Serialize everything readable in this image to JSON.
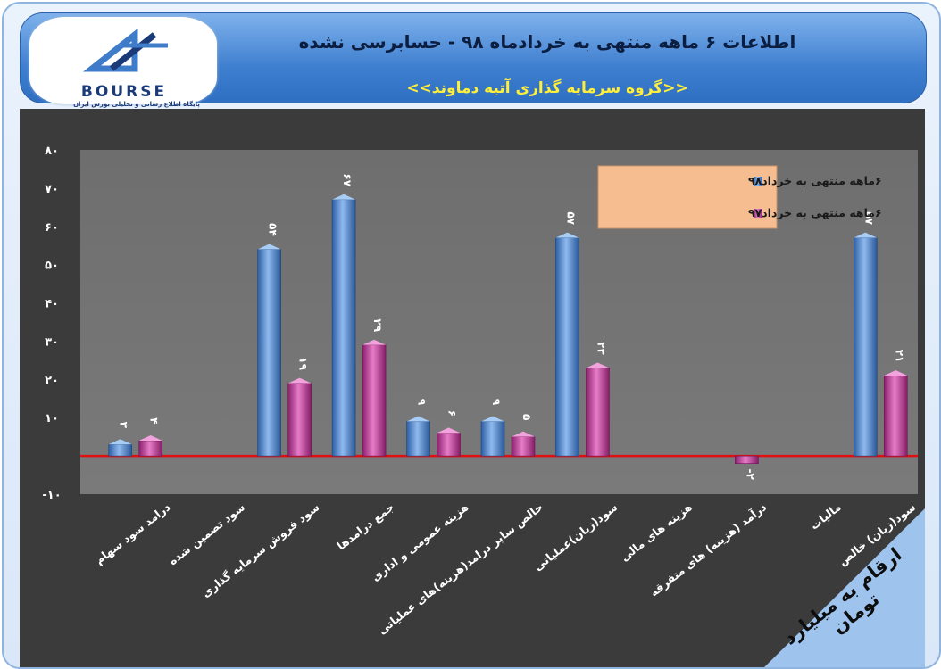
{
  "header": {
    "title": "اطلاعات ۶ ماهه منتهی به خردادماه ۹۸ - حسابرسی نشده",
    "subtitle": "<<گروه سرمایه گذاری آتیه دماوند>>"
  },
  "logo": {
    "text": "BOURSE",
    "subtitle": "پایگاه اطلاع رسانی و تحلیلی بورس ایران"
  },
  "unit_label": "ارقام به میلیارد تومان",
  "colors": {
    "series_98": "#4a84cc",
    "series_97": "#b8348f",
    "zero_line": "#e01010",
    "legend_bg": "#f6bd90"
  },
  "chart_data": {
    "type": "bar",
    "ylim": [
      -10,
      80
    ],
    "yticks": [
      -10,
      10,
      20,
      30,
      40,
      50,
      60,
      70,
      80
    ],
    "ytick_labels": [
      "-۱۰",
      "۱۰",
      "۲۰",
      "۳۰",
      "۴۰",
      "۵۰",
      "۶۰",
      "۷۰",
      "۸۰"
    ],
    "categories": [
      "درامد سود سهام",
      "سود تضمین شده",
      "سود فروش سرمایه گذاری",
      "جمع درامدها",
      "هزینه عمومی و اداری",
      "خالص سایر درامد(هزینه)های عملیاتی",
      "سود(زیان)عملیاتی",
      "هزینه های مالی",
      "درآمد (هزینه) های متفرقه",
      "مالیات",
      "سود(زیان) خالص"
    ],
    "series": [
      {
        "name": "۶ماهه منتهی به خرداد۹۸",
        "values": [
          3,
          null,
          54,
          67,
          9,
          9,
          57,
          null,
          null,
          null,
          57
        ],
        "labels": [
          "۳",
          "",
          "۵۴",
          "۶۷",
          "۹",
          "۹",
          "۵۷",
          "",
          "",
          "",
          "۵۷"
        ]
      },
      {
        "name": "۶ماهه منتهی به خرداد۹۷",
        "values": [
          4,
          null,
          19,
          29,
          6,
          5,
          23,
          null,
          -2,
          null,
          21
        ],
        "labels": [
          "۴",
          "",
          "۱۹",
          "۲۹",
          "۶",
          "۵",
          "۲۳",
          "",
          "-۲",
          "",
          "۲۱"
        ]
      }
    ],
    "legend_position": "top-right"
  }
}
